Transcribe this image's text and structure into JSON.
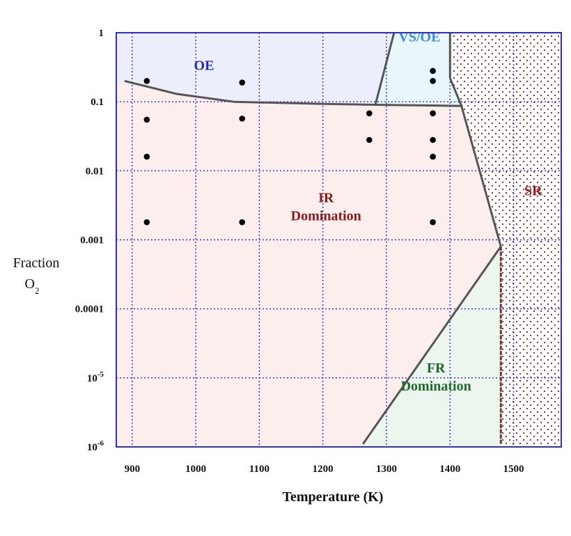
{
  "chart_data": {
    "type": "scatter",
    "title": "",
    "xlabel": "Temperature (K)",
    "ylabel_line1": "Fraction",
    "ylabel_line2": "O",
    "ylabel_sub": "2",
    "xlim": [
      875,
      1575
    ],
    "ylim": [
      1e-06,
      1
    ],
    "y_scale": "log",
    "grid": true,
    "x_ticks": [
      {
        "value": 900,
        "label": "900"
      },
      {
        "value": 1000,
        "label": "1000"
      },
      {
        "value": 1100,
        "label": "1100"
      },
      {
        "value": 1200,
        "label": "1200"
      },
      {
        "value": 1300,
        "label": "1300"
      },
      {
        "value": 1400,
        "label": "1400"
      },
      {
        "value": 1500,
        "label": "1500"
      }
    ],
    "y_ticks": [
      {
        "value": 1,
        "label": "1",
        "exp": ""
      },
      {
        "value": 0.1,
        "label": "0.1",
        "exp": ""
      },
      {
        "value": 0.01,
        "label": "0.01",
        "exp": ""
      },
      {
        "value": 0.001,
        "label": "0.001",
        "exp": ""
      },
      {
        "value": 0.0001,
        "label": "0.0001",
        "exp": ""
      },
      {
        "value": 1e-05,
        "label": "10",
        "exp": "-5"
      },
      {
        "value": 1e-06,
        "label": "10",
        "exp": "-6"
      }
    ],
    "colors": {
      "frame": "#2a2fd0",
      "grid": "#2a2fd0",
      "boundary": "#555555",
      "oe_fill": "#eceefb",
      "vsoe_fill": "#e9f6fc",
      "ir_fill": "#fdeeee",
      "fr_fill": "#ecf5ee",
      "sr_dots": "#8b1a1a",
      "oe_text": "#1f2bb8",
      "vsoe_text": "#3a8fd6",
      "ir_text": "#8b1a1a",
      "fr_text": "#1e6b2e",
      "sr_text": "#8b1a1a",
      "points": "#000000"
    },
    "regions": [
      {
        "id": "oe",
        "lines": [
          "OE"
        ],
        "x": 1013,
        "y": 0.29,
        "color_key": "oe_text"
      },
      {
        "id": "vsoe",
        "lines": [
          "VS/OE"
        ],
        "x": 1352,
        "y": 0.75,
        "color_key": "vsoe_text"
      },
      {
        "id": "ir",
        "lines": [
          "IR",
          "Domination"
        ],
        "x": 1205,
        "y": 0.0035,
        "color_key": "ir_text"
      },
      {
        "id": "fr",
        "lines": [
          "FR",
          "Domination"
        ],
        "x": 1378,
        "y": 1.2e-05,
        "color_key": "fr_text"
      },
      {
        "id": "sr",
        "lines": [
          "SR"
        ],
        "x": 1531,
        "y": 0.0044,
        "color_key": "sr_text"
      }
    ],
    "boundaries": [
      {
        "name": "upper-boundary",
        "points": [
          [
            888,
            0.2
          ],
          [
            970,
            0.13
          ],
          [
            1060,
            0.1
          ],
          [
            1200,
            0.093
          ],
          [
            1300,
            0.09
          ],
          [
            1420,
            0.087
          ]
        ]
      },
      {
        "name": "vsoe-left-boundary",
        "points": [
          [
            1283,
            0.093
          ],
          [
            1312,
            1
          ]
        ]
      },
      {
        "name": "vsoe-right-boundary",
        "points": [
          [
            1400,
            1
          ],
          [
            1400,
            0.22
          ]
        ]
      },
      {
        "name": "sr-upper-boundary",
        "points": [
          [
            1400,
            0.22
          ],
          [
            1418,
            0.087
          ],
          [
            1480,
            0.0008
          ]
        ]
      },
      {
        "name": "fr-boundary",
        "points": [
          [
            1263,
            1.1e-06
          ],
          [
            1480,
            0.0008
          ]
        ]
      },
      {
        "name": "sr-lower-boundary",
        "points": [
          [
            1480,
            0.0008
          ],
          [
            1480,
            1.1e-06
          ]
        ]
      }
    ],
    "points": [
      {
        "x": 923,
        "y": 0.2
      },
      {
        "x": 923,
        "y": 0.055
      },
      {
        "x": 923,
        "y": 0.016
      },
      {
        "x": 923,
        "y": 0.0018
      },
      {
        "x": 1073,
        "y": 0.19
      },
      {
        "x": 1073,
        "y": 0.057
      },
      {
        "x": 1073,
        "y": 0.0018
      },
      {
        "x": 1273,
        "y": 0.068
      },
      {
        "x": 1273,
        "y": 0.028
      },
      {
        "x": 1373,
        "y": 0.28
      },
      {
        "x": 1373,
        "y": 0.2
      },
      {
        "x": 1373,
        "y": 0.068
      },
      {
        "x": 1373,
        "y": 0.028
      },
      {
        "x": 1373,
        "y": 0.016
      },
      {
        "x": 1373,
        "y": 0.0018
      }
    ]
  }
}
